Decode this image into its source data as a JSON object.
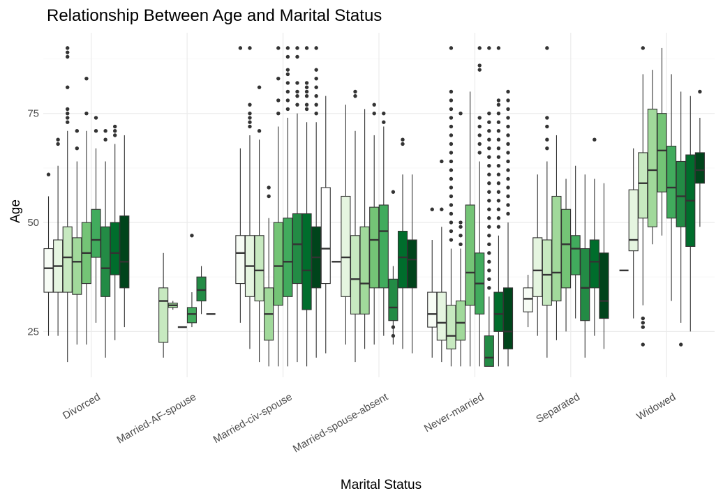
{
  "chart_data": {
    "type": "boxplot",
    "title": "Relationship Between Age and Marital Status",
    "xlabel": "Marital Status",
    "ylabel": "Age",
    "ylim": [
      14.5,
      93.5
    ],
    "y_ticks": [
      25,
      50,
      75
    ],
    "grid": true,
    "legend": "none",
    "categories": [
      "Divorced",
      "Married-AF-spouse",
      "Married-civ-spouse",
      "Married-spouse-absent",
      "Never-married",
      "Separated",
      "Widowed"
    ],
    "fill_palette": [
      "#f7fcf5",
      "#e5f5e0",
      "#c7e9c0",
      "#a1d99b",
      "#74c476",
      "#41ab5d",
      "#238b45",
      "#006d2c",
      "#00441b",
      "#ffffff"
    ],
    "groups": [
      {
        "category": "Divorced",
        "boxes": [
          {
            "slot": 0,
            "q1": 34,
            "median": 39.5,
            "q3": 44,
            "lower": 24,
            "upper": 56,
            "outliers": [
              61
            ]
          },
          {
            "slot": 1,
            "q1": 34,
            "median": 40,
            "q3": 46,
            "lower": 24,
            "upper": 63,
            "outliers": [
              68,
              69
            ]
          },
          {
            "slot": 2,
            "q1": 34,
            "median": 42,
            "q3": 49,
            "lower": 18,
            "upper": 71,
            "outliers": [
              73,
              74,
              75,
              76,
              81,
              88,
              89,
              90
            ]
          },
          {
            "slot": 3,
            "q1": 33.5,
            "median": 41,
            "q3": 46.5,
            "lower": 22,
            "upper": 64,
            "outliers": [
              67,
              71
            ]
          },
          {
            "slot": 4,
            "q1": 36,
            "median": 43,
            "q3": 50,
            "lower": 22,
            "upper": 71,
            "outliers": [
              75,
              83
            ]
          },
          {
            "slot": 5,
            "q1": 42,
            "median": 46,
            "q3": 53,
            "lower": 27,
            "upper": 67,
            "outliers": [
              71,
              74
            ]
          },
          {
            "slot": 6,
            "q1": 33,
            "median": 39.5,
            "q3": 49,
            "lower": 19,
            "upper": 64,
            "outliers": [
              69,
              71
            ]
          },
          {
            "slot": 7,
            "q1": 38,
            "median": 43,
            "q3": 50,
            "lower": 23,
            "upper": 68,
            "outliers": [
              70,
              71,
              72
            ]
          },
          {
            "slot": 8,
            "q1": 35,
            "median": 41,
            "q3": 51.5,
            "lower": 26,
            "upper": 70,
            "outliers": []
          }
        ]
      },
      {
        "category": "Married-AF-spouse",
        "boxes": [
          {
            "slot": 2,
            "q1": 22.5,
            "median": 32,
            "q3": 35,
            "lower": 19,
            "upper": 43,
            "outliers": []
          },
          {
            "slot": 3,
            "q1": 30.5,
            "median": 31,
            "q3": 31.5,
            "lower": 30,
            "upper": 32,
            "outliers": []
          },
          {
            "slot": 4,
            "q1": 26,
            "median": 26,
            "q3": 26,
            "lower": 26,
            "upper": 26,
            "outliers": []
          },
          {
            "slot": 5,
            "q1": 27,
            "median": 29,
            "q3": 30.5,
            "lower": 26,
            "upper": 34,
            "outliers": [
              47
            ]
          },
          {
            "slot": 6,
            "q1": 32,
            "median": 34.5,
            "q3": 37.5,
            "lower": 29,
            "upper": 40,
            "outliers": []
          },
          {
            "slot": 7,
            "q1": 29,
            "median": 29,
            "q3": 29,
            "lower": 29,
            "upper": 29,
            "outliers": []
          }
        ]
      },
      {
        "category": "Married-civ-spouse",
        "boxes": [
          {
            "slot": 0,
            "q1": 36,
            "median": 43,
            "q3": 47,
            "lower": 27,
            "upper": 67,
            "outliers": [
              90
            ]
          },
          {
            "slot": 1,
            "q1": 33,
            "median": 40,
            "q3": 47,
            "lower": 21,
            "upper": 70,
            "outliers": [
              72,
              73,
              74,
              75,
              77,
              90
            ]
          },
          {
            "slot": 2,
            "q1": 32,
            "median": 39,
            "q3": 47,
            "lower": 18,
            "upper": 69,
            "outliers": [
              71,
              81
            ]
          },
          {
            "slot": 3,
            "q1": 23,
            "median": 29,
            "q3": 35,
            "lower": 17,
            "upper": 51,
            "outliers": [
              56,
              58
            ]
          },
          {
            "slot": 4,
            "q1": 31,
            "median": 40,
            "q3": 50,
            "lower": 17,
            "upper": 72,
            "outliers": [
              75,
              78,
              83,
              90
            ]
          },
          {
            "slot": 5,
            "q1": 33,
            "median": 41,
            "q3": 51,
            "lower": 17,
            "upper": 74,
            "outliers": [
              76,
              78,
              80,
              82,
              84,
              85,
              88,
              90
            ]
          },
          {
            "slot": 6,
            "q1": 36,
            "median": 45,
            "q3": 52,
            "lower": 18,
            "upper": 75,
            "outliers": [
              77,
              79,
              80,
              82,
              88,
              90
            ]
          },
          {
            "slot": 7,
            "q1": 30,
            "median": 39,
            "q3": 52,
            "lower": 17,
            "upper": 73,
            "outliers": [
              76,
              77,
              79,
              80,
              81,
              82,
              90
            ]
          },
          {
            "slot": 8,
            "q1": 35,
            "median": 42,
            "q3": 49,
            "lower": 19,
            "upper": 73,
            "outliers": [
              75,
              77,
              79,
              81,
              83,
              85,
              90
            ]
          },
          {
            "slot": 9,
            "q1": 36,
            "median": 44,
            "q3": 58,
            "lower": 20,
            "upper": 79,
            "outliers": []
          }
        ]
      },
      {
        "category": "Married-spouse-absent",
        "boxes": [
          {
            "slot": 0,
            "q1": 41,
            "median": 41,
            "q3": 41,
            "lower": 41,
            "upper": 41,
            "outliers": []
          },
          {
            "slot": 1,
            "q1": 33,
            "median": 42,
            "q3": 56,
            "lower": 22,
            "upper": 77,
            "outliers": []
          },
          {
            "slot": 2,
            "q1": 29,
            "median": 37,
            "q3": 47,
            "lower": 18,
            "upper": 71,
            "outliers": [
              79,
              80
            ]
          },
          {
            "slot": 3,
            "q1": 29,
            "median": 36,
            "q3": 49,
            "lower": 21,
            "upper": 76,
            "outliers": []
          },
          {
            "slot": 4,
            "q1": 35,
            "median": 46,
            "q3": 53.5,
            "lower": 22,
            "upper": 70,
            "outliers": [
              75,
              77
            ]
          },
          {
            "slot": 5,
            "q1": 35,
            "median": 48,
            "q3": 54,
            "lower": 24,
            "upper": 72,
            "outliers": [
              73,
              75
            ]
          },
          {
            "slot": 6,
            "q1": 27.5,
            "median": 30.5,
            "q3": 37,
            "lower": 22,
            "upper": 40,
            "outliers": [
              24,
              26,
              57
            ]
          },
          {
            "slot": 7,
            "q1": 35,
            "median": 42,
            "q3": 48,
            "lower": 21,
            "upper": 61,
            "outliers": [
              68,
              69
            ]
          },
          {
            "slot": 8,
            "q1": 35,
            "median": 41.5,
            "q3": 46,
            "lower": 20,
            "upper": 61,
            "outliers": []
          }
        ]
      },
      {
        "category": "Never-married",
        "boxes": [
          {
            "slot": 0,
            "q1": 26,
            "median": 29,
            "q3": 34,
            "lower": 19,
            "upper": 46,
            "outliers": [
              53
            ]
          },
          {
            "slot": 1,
            "q1": 23,
            "median": 27,
            "q3": 34,
            "lower": 18,
            "upper": 49,
            "outliers": [
              53,
              64
            ]
          },
          {
            "slot": 2,
            "q1": 21,
            "median": 24,
            "q3": 31,
            "lower": 17,
            "upper": 44,
            "outliers": [
              46,
              48,
              50,
              52,
              54,
              56,
              58,
              60,
              62,
              64,
              66,
              68,
              70,
              72,
              74,
              76,
              78,
              80,
              90
            ]
          },
          {
            "slot": 3,
            "q1": 23,
            "median": 27,
            "q3": 32,
            "lower": 17,
            "upper": 44,
            "outliers": [
              45,
              47,
              49,
              50,
              75
            ]
          },
          {
            "slot": 4,
            "q1": 31,
            "median": 38.5,
            "q3": 54,
            "lower": 17,
            "upper": 80,
            "outliers": []
          },
          {
            "slot": 5,
            "q1": 29,
            "median": 36,
            "q3": 43,
            "lower": 17,
            "upper": 64,
            "outliers": [
              66,
              68,
              70,
              72,
              74,
              85,
              86,
              90
            ]
          },
          {
            "slot": 6,
            "q1": 17,
            "median": 19,
            "q3": 24,
            "lower": 17,
            "upper": 33,
            "outliers": [
              35,
              37,
              39,
              41,
              43,
              45,
              47,
              49,
              51,
              53,
              55,
              57,
              59,
              61,
              63,
              65,
              67,
              69,
              71,
              73,
              75,
              90
            ]
          },
          {
            "slot": 7,
            "q1": 25,
            "median": 29,
            "q3": 34,
            "lower": 17,
            "upper": 47,
            "outliers": [
              49,
              51,
              53,
              55,
              57,
              59,
              61,
              63,
              65,
              67,
              69,
              71,
              73,
              75,
              77,
              78,
              90
            ]
          },
          {
            "slot": 8,
            "q1": 21,
            "median": 25,
            "q3": 35,
            "lower": 17,
            "upper": 50,
            "outliers": [
              52,
              54,
              56,
              58,
              60,
              62,
              64,
              66,
              68,
              70,
              72,
              74,
              76,
              78,
              80
            ]
          }
        ]
      },
      {
        "category": "Separated",
        "boxes": [
          {
            "slot": 0,
            "q1": 29.5,
            "median": 32.5,
            "q3": 35,
            "lower": 26,
            "upper": 38,
            "outliers": []
          },
          {
            "slot": 1,
            "q1": 33,
            "median": 39,
            "q3": 46.5,
            "lower": 24,
            "upper": 61,
            "outliers": []
          },
          {
            "slot": 2,
            "q1": 31,
            "median": 38,
            "q3": 46,
            "lower": 19,
            "upper": 64,
            "outliers": [
              67,
              69,
              72,
              74,
              90
            ]
          },
          {
            "slot": 3,
            "q1": 32,
            "median": 38.5,
            "q3": 56,
            "lower": 23,
            "upper": 70,
            "outliers": []
          },
          {
            "slot": 4,
            "q1": 35,
            "median": 45,
            "q3": 53,
            "lower": 25,
            "upper": 60,
            "outliers": []
          },
          {
            "slot": 5,
            "q1": 38,
            "median": 44,
            "q3": 47,
            "lower": 28,
            "upper": 63,
            "outliers": []
          },
          {
            "slot": 6,
            "q1": 27.5,
            "median": 35,
            "q3": 44,
            "lower": 19,
            "upper": 61,
            "outliers": []
          },
          {
            "slot": 7,
            "q1": 35,
            "median": 41,
            "q3": 46,
            "lower": 24,
            "upper": 60,
            "outliers": [
              69
            ]
          },
          {
            "slot": 8,
            "q1": 28,
            "median": 32,
            "q3": 43,
            "lower": 21,
            "upper": 59,
            "outliers": []
          }
        ]
      },
      {
        "category": "Widowed",
        "boxes": [
          {
            "slot": 0,
            "q1": 39,
            "median": 39,
            "q3": 39,
            "lower": 39,
            "upper": 39,
            "outliers": []
          },
          {
            "slot": 1,
            "q1": 43.5,
            "median": 46,
            "q3": 57.5,
            "lower": 28,
            "upper": 67,
            "outliers": []
          },
          {
            "slot": 2,
            "q1": 51,
            "median": 59,
            "q3": 66,
            "lower": 31,
            "upper": 84,
            "outliers": [
              22,
              26,
              27,
              28,
              90
            ]
          },
          {
            "slot": 3,
            "q1": 49,
            "median": 62,
            "q3": 76,
            "lower": 45,
            "upper": 85,
            "outliers": []
          },
          {
            "slot": 4,
            "q1": 57,
            "median": 66.5,
            "q3": 75,
            "lower": 47,
            "upper": 90,
            "outliers": []
          },
          {
            "slot": 5,
            "q1": 51,
            "median": 58,
            "q3": 67.5,
            "lower": 32,
            "upper": 84,
            "outliers": []
          },
          {
            "slot": 6,
            "q1": 49,
            "median": 56,
            "q3": 64,
            "lower": 27,
            "upper": 80,
            "outliers": [
              22
            ]
          },
          {
            "slot": 7,
            "q1": 44.5,
            "median": 55,
            "q3": 65.5,
            "lower": 25,
            "upper": 79,
            "outliers": []
          },
          {
            "slot": 8,
            "q1": 59,
            "median": 62,
            "q3": 66,
            "lower": 49,
            "upper": 74,
            "outliers": [
              80
            ]
          }
        ]
      }
    ]
  }
}
